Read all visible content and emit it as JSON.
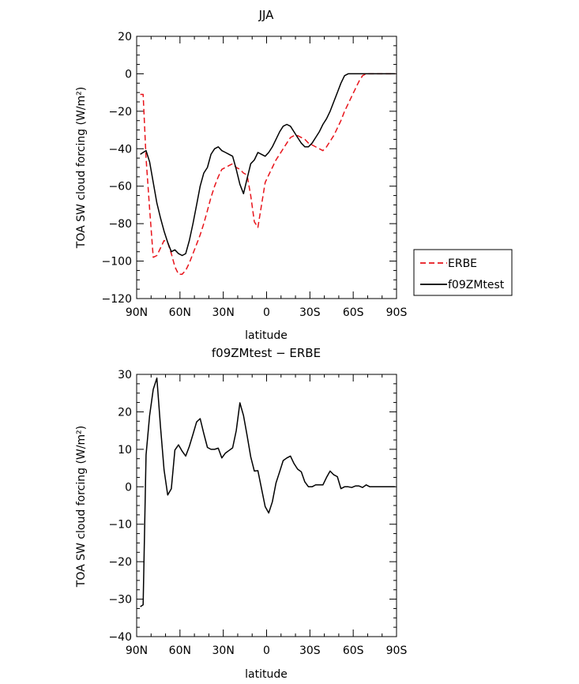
{
  "chart_data": [
    {
      "type": "line",
      "title": "JJA",
      "xlabel": "latitude",
      "ylabel": "TOA SW cloud forcing (W/m²)",
      "xlim": [
        90,
        -90
      ],
      "ylim": [
        -120,
        20
      ],
      "xticks": [
        90,
        60,
        30,
        0,
        -30,
        -60,
        -90
      ],
      "xtick_labels": [
        "90N",
        "60N",
        "30N",
        "0",
        "30S",
        "60S",
        "90S"
      ],
      "yticks": [
        20,
        0,
        -20,
        -40,
        -60,
        -80,
        -100,
        -120
      ],
      "ytick_labels": [
        "20",
        "0",
        "−20",
        "−40",
        "−60",
        "−80",
        "−100",
        "−120"
      ],
      "legend": {
        "placement": "outside-right",
        "entries": [
          "ERBE",
          "f09ZMtest"
        ]
      },
      "series": [
        {
          "name": "ERBE",
          "color": "#e8141b",
          "dash": "dashed",
          "x": [
            87.5,
            85.5,
            83.5,
            81.0,
            78.5,
            76.0,
            73.5,
            71.0,
            68.5,
            66.0,
            63.5,
            61.0,
            58.5,
            56.0,
            53.5,
            51.0,
            48.5,
            46.0,
            43.5,
            41.0,
            38.5,
            36.0,
            33.5,
            31.0,
            28.5,
            26.0,
            23.5,
            21.0,
            18.5,
            16.0,
            13.5,
            11.0,
            8.5,
            6.0,
            3.5,
            1.0,
            -1.5,
            -4.0,
            -6.5,
            -9.0,
            -11.5,
            -14.0,
            -16.5,
            -19.0,
            -21.5,
            -24.0,
            -26.5,
            -29.0,
            -31.5,
            -34.0,
            -36.5,
            -39.0,
            -41.5,
            -44.0,
            -46.5,
            -49.0,
            -51.5,
            -54.0,
            -56.5,
            -59.0,
            -61.5,
            -64.0,
            -66.5,
            -69.0,
            -71.5,
            -74.0,
            -76.5,
            -79.0,
            -81.5,
            -84.0,
            -86.5,
            -89.0
          ],
          "y": [
            -11,
            -11,
            -45,
            -72,
            -98,
            -97,
            -93,
            -89,
            -90,
            -96,
            -103,
            -107,
            -107,
            -105,
            -101,
            -96,
            -91,
            -86,
            -80,
            -73,
            -66,
            -60,
            -55,
            -51,
            -50,
            -49,
            -48,
            -50,
            -51,
            -53,
            -54,
            -65,
            -79,
            -82,
            -70,
            -58,
            -54,
            -50,
            -46,
            -43,
            -40,
            -37,
            -34,
            -33,
            -33,
            -34,
            -35,
            -37,
            -38,
            -39,
            -40,
            -41,
            -39,
            -36,
            -33,
            -29,
            -25,
            -20,
            -16,
            -12,
            -8,
            -4,
            -1,
            0,
            0,
            0,
            0,
            0,
            0,
            0,
            0,
            0
          ]
        },
        {
          "name": "f09ZMtest",
          "color": "#000000",
          "dash": "solid",
          "x": [
            87.5,
            85.5,
            83.5,
            81.0,
            78.5,
            76.0,
            73.5,
            71.0,
            68.5,
            66.0,
            63.5,
            61.0,
            58.5,
            56.0,
            53.5,
            51.0,
            48.5,
            46.0,
            43.5,
            41.0,
            38.5,
            36.0,
            33.5,
            31.0,
            28.5,
            26.0,
            23.5,
            21.0,
            18.5,
            16.0,
            13.5,
            11.0,
            8.5,
            6.0,
            3.5,
            1.0,
            -1.5,
            -4.0,
            -6.5,
            -9.0,
            -11.5,
            -14.0,
            -16.5,
            -19.0,
            -21.5,
            -24.0,
            -26.5,
            -29.0,
            -31.5,
            -34.0,
            -36.5,
            -39.0,
            -41.5,
            -44.0,
            -46.5,
            -49.0,
            -51.5,
            -54.0,
            -56.5,
            -59.0,
            -61.5,
            -64.0,
            -66.5,
            -69.0,
            -71.5,
            -74.0,
            -76.5,
            -79.0,
            -81.5,
            -84.0,
            -86.5,
            -89.0
          ],
          "y": [
            -43,
            -42,
            -41,
            -47,
            -58,
            -69,
            -77,
            -84,
            -90,
            -95,
            -94,
            -96,
            -97,
            -96,
            -89,
            -80,
            -70,
            -60,
            -53,
            -50,
            -43,
            -40,
            -39,
            -41,
            -42,
            -43,
            -44,
            -51,
            -59,
            -64,
            -56,
            -48,
            -46,
            -42,
            -43,
            -44,
            -42,
            -39,
            -35,
            -31,
            -28,
            -27,
            -28,
            -31,
            -34,
            -37,
            -39,
            -39,
            -37,
            -34,
            -31,
            -27,
            -24,
            -20,
            -15,
            -10,
            -5,
            -1,
            0,
            0,
            0,
            0,
            0,
            0,
            0,
            0,
            0,
            0,
            0,
            0,
            0,
            0
          ]
        }
      ]
    },
    {
      "type": "line",
      "title": "f09ZMtest − ERBE",
      "xlabel": "latitude",
      "ylabel": "TOA SW cloud forcing (W/m²)",
      "xlim": [
        90,
        -90
      ],
      "ylim": [
        -40,
        30
      ],
      "xticks": [
        90,
        60,
        30,
        0,
        -30,
        -60,
        -90
      ],
      "xtick_labels": [
        "90N",
        "60N",
        "30N",
        "0",
        "30S",
        "60S",
        "90S"
      ],
      "yticks": [
        30,
        20,
        10,
        0,
        -10,
        -20,
        -30,
        -40
      ],
      "ytick_labels": [
        "30",
        "20",
        "10",
        "0",
        "−10",
        "−20",
        "−30",
        "−40"
      ],
      "series": [
        {
          "color": "#000000",
          "dash": "solid",
          "x": [
            87.5,
            85.5,
            83.5,
            81.0,
            78.5,
            76.0,
            73.5,
            71.0,
            68.5,
            66.0,
            63.5,
            61.0,
            58.5,
            56.0,
            53.5,
            51.0,
            48.5,
            46.0,
            43.5,
            41.0,
            38.5,
            36.0,
            33.5,
            31.0,
            28.5,
            26.0,
            23.5,
            21.0,
            18.5,
            16.0,
            13.5,
            11.0,
            8.5,
            6.0,
            3.5,
            1.0,
            -1.5,
            -4.0,
            -6.5,
            -9.0,
            -11.5,
            -14.0,
            -16.5,
            -19.0,
            -21.5,
            -24.0,
            -26.5,
            -29.0,
            -31.5,
            -34.0,
            -36.5,
            -39.0,
            -41.5,
            -44.0,
            -46.5,
            -49.0,
            -51.5,
            -54.0,
            -56.5,
            -59.0,
            -61.5,
            -64.0,
            -66.5,
            -69.0,
            -71.5,
            -74.0,
            -76.5,
            -79.0,
            -81.5,
            -84.0,
            -86.5,
            -89.0
          ],
          "y": [
            -32,
            -31.5,
            8.5,
            19,
            26,
            29,
            16,
            4.5,
            -2.2,
            -0.5,
            9.8,
            11.2,
            9.5,
            8.2,
            10.8,
            14,
            17.3,
            18.2,
            14.2,
            10.5,
            10,
            10,
            10.3,
            7.7,
            9,
            9.7,
            10.4,
            15,
            22.4,
            19,
            13.7,
            8,
            4.2,
            4.3,
            -0.5,
            -5.3,
            -7,
            -4,
            1,
            4,
            7,
            7.7,
            8.2,
            6.2,
            4.7,
            4,
            1.3,
            0,
            0,
            0.5,
            0.5,
            0.5,
            2.5,
            4.2,
            3.2,
            2.7,
            -0.5,
            0,
            0,
            -0.2,
            0.2,
            0.2,
            -0.2,
            0.5,
            0,
            0,
            0,
            0,
            0,
            0,
            0,
            0
          ]
        }
      ]
    }
  ]
}
